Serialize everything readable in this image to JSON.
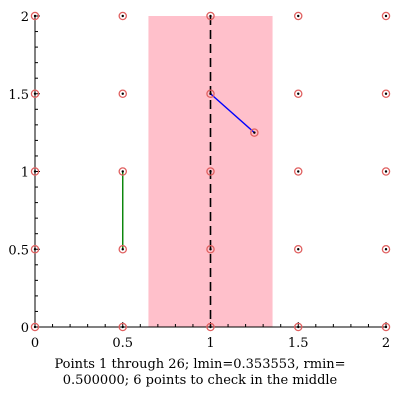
{
  "chart_data": {
    "type": "scatter",
    "xlim": [
      0,
      2
    ],
    "ylim": [
      0,
      2
    ],
    "x_ticks": [
      0,
      0.5,
      1,
      1.5,
      2
    ],
    "y_ticks": [
      0,
      0.5,
      1,
      1.5,
      2
    ],
    "x_tick_labels": [
      "0",
      "0.5",
      "1",
      "1.5",
      "2"
    ],
    "y_tick_labels": [
      "0",
      "0.5",
      "1",
      "1.5",
      "2"
    ],
    "grid": false,
    "points": [
      [
        0,
        0
      ],
      [
        0,
        0.5
      ],
      [
        0,
        1
      ],
      [
        0,
        1.5
      ],
      [
        0,
        2
      ],
      [
        0.5,
        0
      ],
      [
        0.5,
        0.5
      ],
      [
        0.5,
        1
      ],
      [
        0.5,
        1.5
      ],
      [
        0.5,
        2
      ],
      [
        1,
        0
      ],
      [
        1,
        0.5
      ],
      [
        1,
        1
      ],
      [
        1,
        1.5
      ],
      [
        1,
        2
      ],
      [
        1.5,
        0
      ],
      [
        1.5,
        0.5
      ],
      [
        1.5,
        1
      ],
      [
        1.5,
        1.5
      ],
      [
        1.5,
        2
      ],
      [
        2,
        0
      ],
      [
        2,
        0.5
      ],
      [
        2,
        1
      ],
      [
        2,
        1.5
      ],
      [
        2,
        2
      ],
      [
        1.25,
        1.25
      ]
    ],
    "strip": {
      "x": [
        0.646447,
        1.353553
      ],
      "y": [
        0,
        2
      ]
    },
    "dividing_line_x": 1,
    "segments": [
      {
        "from": [
          0.5,
          0.5
        ],
        "to": [
          0.5,
          1
        ],
        "color": "#008000"
      },
      {
        "from": [
          1,
          1.5
        ],
        "to": [
          1.25,
          1.25
        ],
        "color": "#0000ff"
      }
    ],
    "colors": {
      "strip": "#ffc0cb",
      "point": "#e06060",
      "point_dot": "#000000",
      "dividing_line": "#000000",
      "axis": "#000000"
    }
  },
  "caption": {
    "line1": "Points 1 through 26; lmin=0.353553, rmin=",
    "line2": "0.500000; 6 points to check in the middle"
  }
}
